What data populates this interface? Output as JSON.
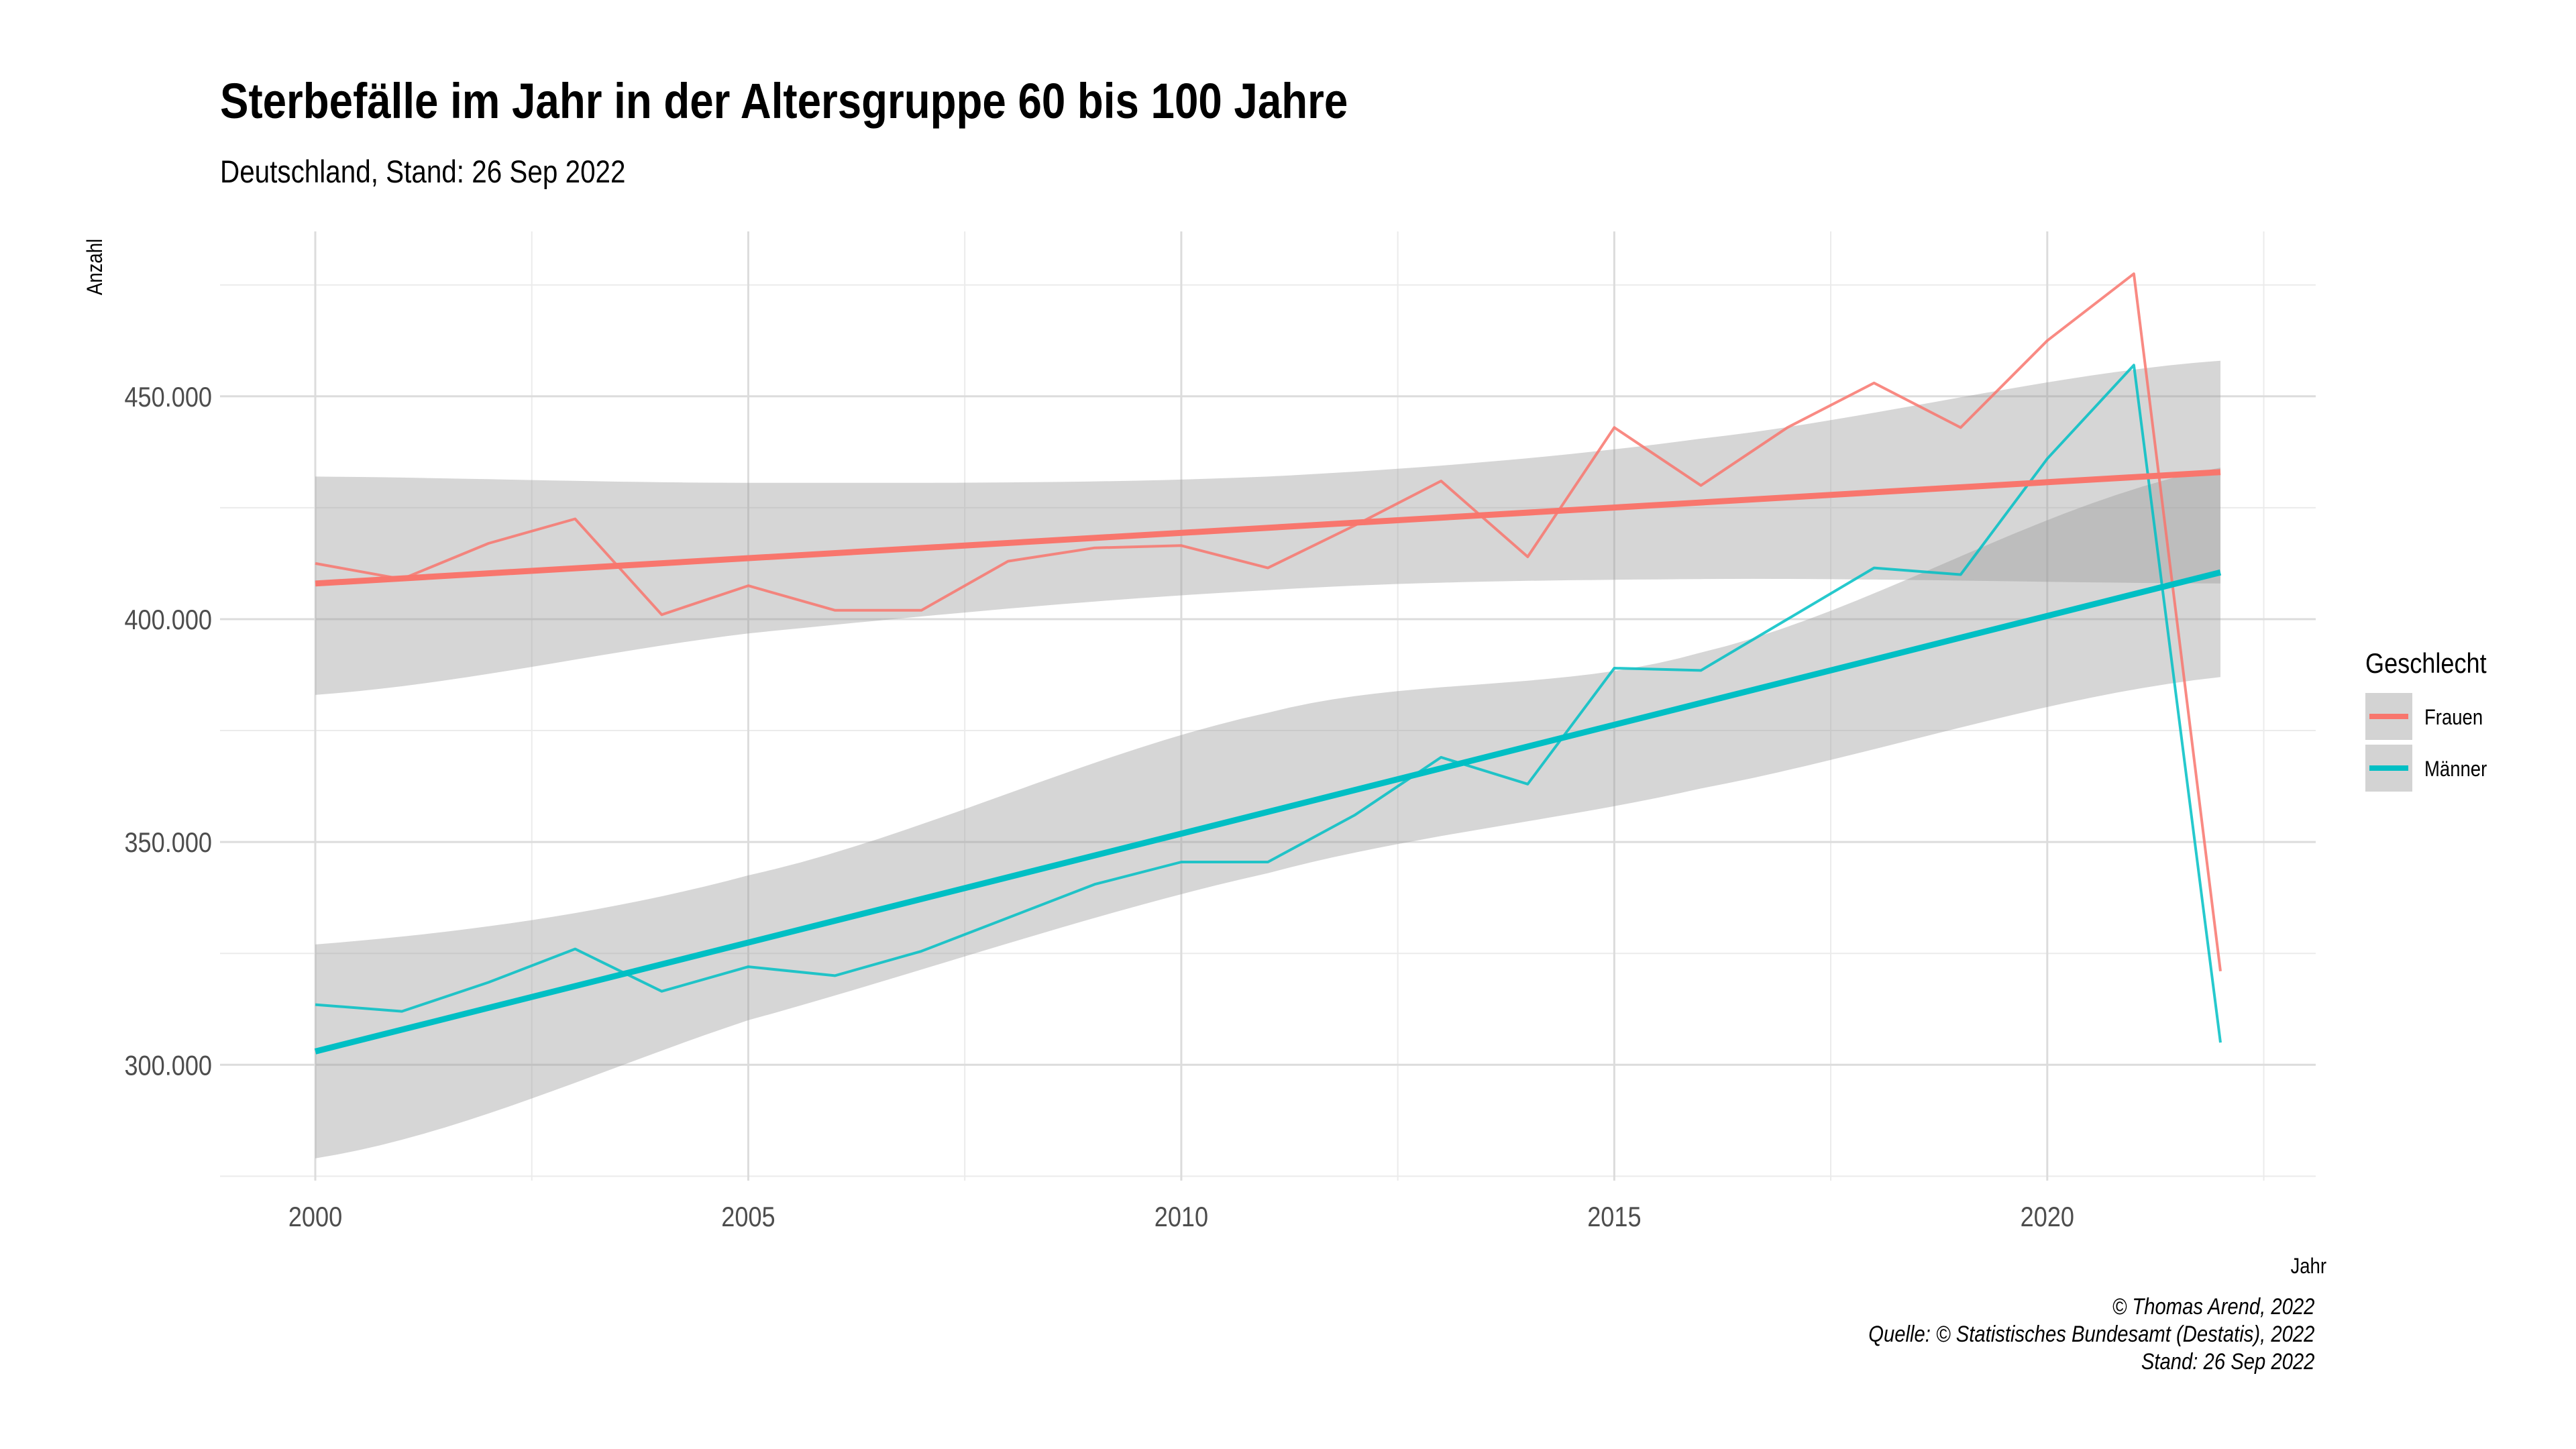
{
  "chart_data": {
    "type": "line",
    "title": "Sterbefälle im Jahr in der Altersgruppe 60 bis 100 Jahre",
    "subtitle": "Deutschland, Stand: 26 Sep 2022",
    "xlabel": "Jahr",
    "ylabel": "Anzahl",
    "x": [
      2000,
      2001,
      2002,
      2003,
      2004,
      2005,
      2006,
      2007,
      2008,
      2009,
      2010,
      2011,
      2012,
      2013,
      2014,
      2015,
      2016,
      2017,
      2018,
      2019,
      2020,
      2021,
      2022
    ],
    "xlim": [
      1998.9,
      2023.1
    ],
    "ylim": [
      274000,
      487000
    ],
    "xticks": [
      2000,
      2005,
      2010,
      2015,
      2020
    ],
    "xtick_labels": [
      "2000",
      "2005",
      "2010",
      "2015",
      "2020"
    ],
    "yticks": [
      300000,
      350000,
      400000,
      450000
    ],
    "ytick_labels": [
      "300.000",
      "350.000",
      "400.000",
      "450.000"
    ],
    "grid": true,
    "legend": {
      "title": "Geschlecht",
      "position": "right"
    },
    "series": [
      {
        "name": "Frauen",
        "color": "#F8766D",
        "values": [
          412500,
          409000,
          417000,
          422500,
          401000,
          407500,
          402000,
          402000,
          413000,
          416000,
          416500,
          411500,
          421000,
          431000,
          414000,
          443000,
          430000,
          443000,
          453000,
          443000,
          462500,
          477500,
          321000
        ],
        "trend": {
          "start": 408000,
          "end": 433000
        },
        "ci": {
          "lower": [
            383000,
            396800,
            406500,
            409000,
            408000
          ],
          "upper": [
            432000,
            430600,
            432000,
            440500,
            458000
          ],
          "x": [
            2000,
            2005,
            2011,
            2016,
            2022
          ]
        }
      },
      {
        "name": "Männer",
        "color": "#00BFC4",
        "values": [
          313500,
          312000,
          318500,
          326000,
          316500,
          322000,
          320000,
          325500,
          333000,
          340500,
          345500,
          345500,
          356000,
          369000,
          363000,
          389000,
          388500,
          400000,
          411500,
          410000,
          436000,
          457000,
          305000
        ],
        "trend": {
          "start": 303000,
          "end": 410500
        },
        "ci": {
          "lower": [
            279000,
            310000,
            343000,
            362000,
            387000
          ],
          "upper": [
            327000,
            342500,
            379000,
            392500,
            434000
          ],
          "x": [
            2000,
            2005,
            2011,
            2016,
            2022
          ]
        }
      }
    ]
  },
  "caption": {
    "line1": "© Thomas Arend, 2022",
    "line2": "Quelle: © Statistisches Bundesamt (Destatis), 2022",
    "line3": "Stand: 26 Sep 2022"
  }
}
